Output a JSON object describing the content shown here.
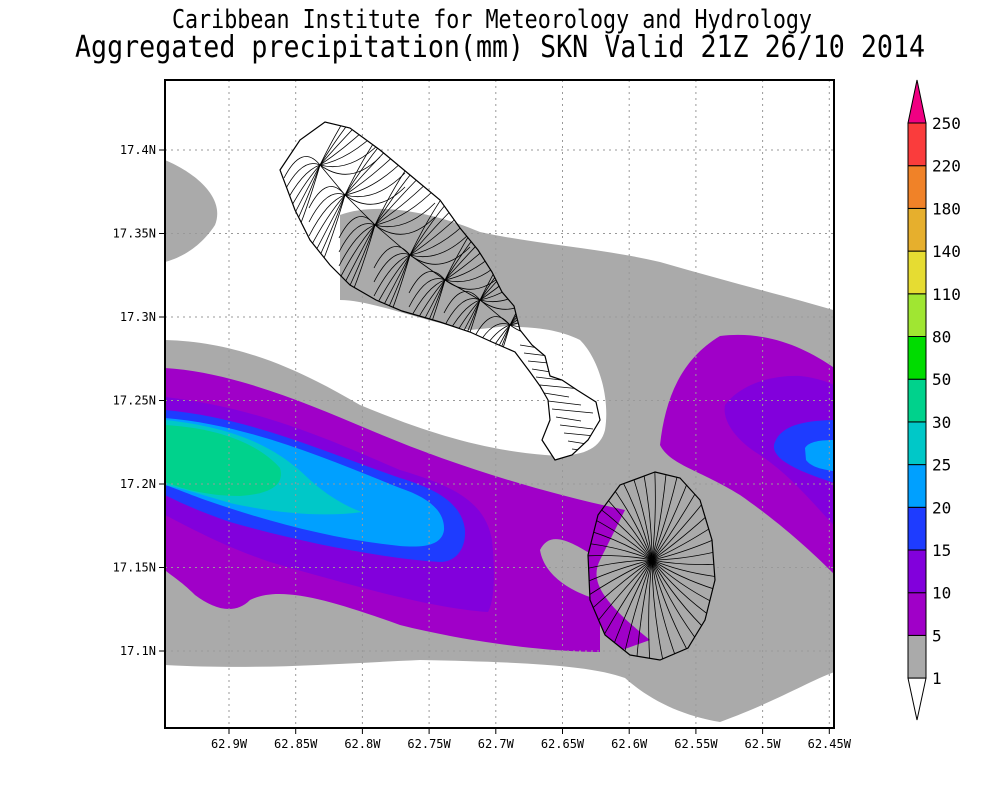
{
  "title": {
    "line1": "Caribbean Institute for Meteorology and Hydrology",
    "line2": "Aggregated precipitation(mm) SKN Valid 21Z 26/10 2014"
  },
  "axes": {
    "x_ticks": [
      "62.9W",
      "62.85W",
      "62.8W",
      "62.75W",
      "62.7W",
      "62.65W",
      "62.6W",
      "62.55W",
      "62.5W",
      "62.45W"
    ],
    "y_ticks": [
      "17.4N",
      "17.35N",
      "17.3N",
      "17.25N",
      "17.2N",
      "17.15N",
      "17.1N"
    ]
  },
  "colorbar": {
    "levels": [
      "1",
      "5",
      "10",
      "15",
      "20",
      "25",
      "30",
      "50",
      "80",
      "110",
      "140",
      "180",
      "220",
      "250"
    ],
    "colors": [
      "#aaaaaa",
      "#a000c8",
      "#8200dc",
      "#1e3cff",
      "#00a0ff",
      "#00c8c8",
      "#00d28c",
      "#00dc00",
      "#a0e632",
      "#e6dc32",
      "#e6af2d",
      "#f08228",
      "#fa3c3c"
    ],
    "below_color": "#ffffff",
    "above_color": "#f00082"
  },
  "map_data": {
    "type": "contour-fill",
    "variable": "Aggregated precipitation (mm)",
    "region": "SKN",
    "xlim": [
      "62.95W",
      "62.45W"
    ],
    "ylim": [
      "17.03N",
      "17.44N"
    ]
  }
}
